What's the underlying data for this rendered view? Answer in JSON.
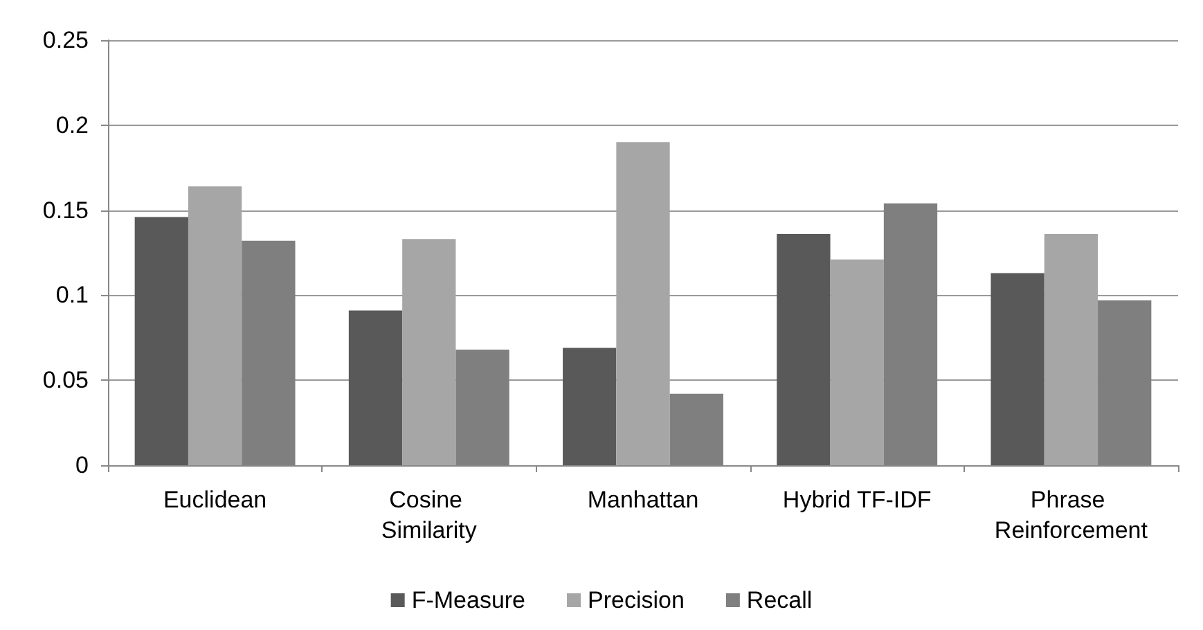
{
  "chart_data": {
    "type": "bar",
    "categories": [
      "Euclidean",
      "Cosine Similarity",
      "Manhattan",
      "Hybrid TF-IDF",
      "Phrase Reinforcement"
    ],
    "series": [
      {
        "name": "F-Measure",
        "color": "#595959",
        "values": [
          0.146,
          0.091,
          0.069,
          0.136,
          0.113
        ]
      },
      {
        "name": "Precision",
        "color": "#a6a6a6",
        "values": [
          0.164,
          0.133,
          0.19,
          0.121,
          0.136
        ]
      },
      {
        "name": "Recall",
        "color": "#7f7f7f",
        "values": [
          0.132,
          0.068,
          0.042,
          0.154,
          0.097
        ]
      }
    ],
    "ylim": [
      0,
      0.25
    ],
    "yticks": [
      0,
      0.05,
      0.1,
      0.15,
      0.2,
      0.25
    ],
    "grid": "y",
    "legend": "bottom"
  }
}
